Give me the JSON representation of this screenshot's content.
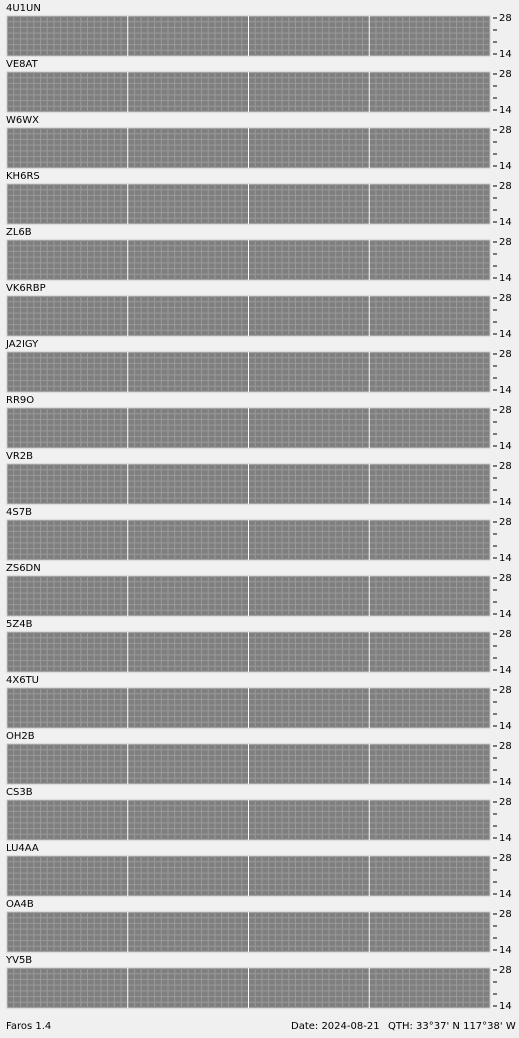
{
  "panels": [
    "4U1UN",
    "VE8AT",
    "W6WX",
    "KH6RS",
    "ZL6B",
    "VK6RBP",
    "JA2IGY",
    "RR9O",
    "VR2B",
    "4S7B",
    "ZS6DN",
    "5Z4B",
    "4X6TU",
    "OH2B",
    "CS3B",
    "LU4AA",
    "OA4B",
    "YV5B"
  ],
  "axis": {
    "top": "28",
    "bottom": "14"
  },
  "footer": {
    "app": "Faros 1.4",
    "date": "Date: 2024-08-21",
    "qth": "QTH: 33°37' N  117°38' W"
  }
}
